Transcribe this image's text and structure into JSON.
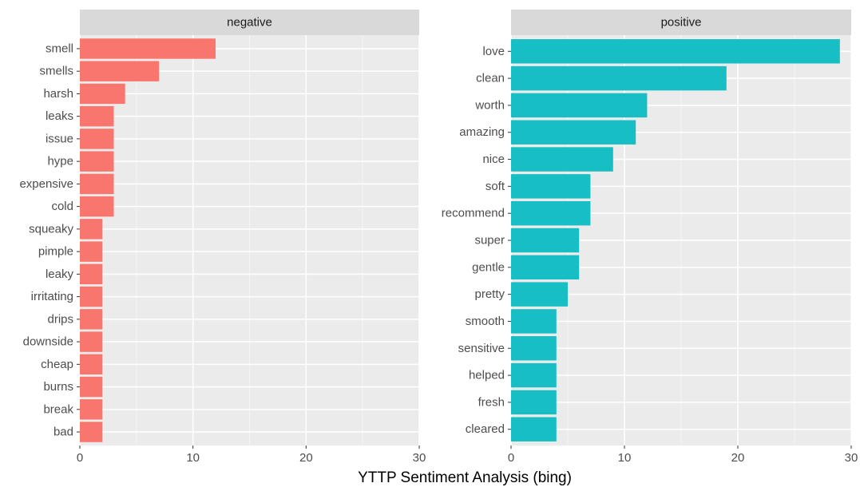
{
  "chart_data": {
    "type": "bar",
    "orientation": "horizontal",
    "xlabel": "YTTP Sentiment Analysis (bing)",
    "xlim": [
      0,
      30
    ],
    "xticks": [
      0,
      10,
      20,
      30
    ],
    "grid": true,
    "panels": [
      {
        "name": "negative",
        "color": "#F8766D",
        "categories": [
          "smell",
          "smells",
          "harsh",
          "leaks",
          "issue",
          "hype",
          "expensive",
          "cold",
          "squeaky",
          "pimple",
          "leaky",
          "irritating",
          "drips",
          "downside",
          "cheap",
          "burns",
          "break",
          "bad"
        ],
        "values": [
          12,
          7,
          4,
          3,
          3,
          3,
          3,
          3,
          2,
          2,
          2,
          2,
          2,
          2,
          2,
          2,
          2,
          2
        ]
      },
      {
        "name": "positive",
        "color": "#17BEC3",
        "categories": [
          "love",
          "clean",
          "worth",
          "amazing",
          "nice",
          "soft",
          "recommend",
          "super",
          "gentle",
          "pretty",
          "smooth",
          "sensitive",
          "helped",
          "fresh",
          "cleared"
        ],
        "values": [
          29,
          19,
          12,
          11,
          9,
          7,
          7,
          6,
          6,
          5,
          4,
          4,
          4,
          4,
          4
        ]
      }
    ]
  }
}
